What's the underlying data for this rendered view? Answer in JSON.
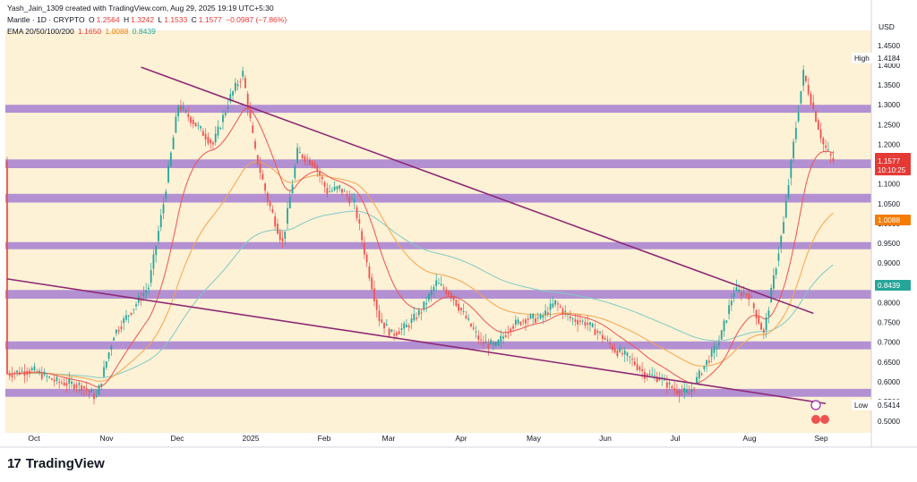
{
  "header": {
    "attribution": "Yash_Jain_1309 created with TradingView.com, Aug 29, 2025 19:19 UTC+5:30",
    "symbol": "Mantle · 1D · CRYPTO",
    "ohlc": {
      "o_label": "O",
      "o": "1.2564",
      "h_label": "H",
      "h": "1.3242",
      "l_label": "L",
      "l": "1.1533",
      "c_label": "C",
      "c": "1.1577",
      "change": "−0.0987 (−7.86%)"
    },
    "ema_label": "EMA 20/50/100/200",
    "ema_values": {
      "ema20": "1.1650",
      "ema50": "1.0088",
      "ema100": "0.8439"
    }
  },
  "currency": "USD",
  "footer_brand": "TradingView",
  "footer_mark": "17",
  "colors": {
    "background": "#fdf1d6",
    "zone": "#a57fd1",
    "trendline": "#8e2a75",
    "up": "#26a69a",
    "down": "#ef5350",
    "ema20": "#ef5350",
    "ema50": "#f7a54a",
    "ema100": "#80cbc4"
  },
  "chart_data": {
    "type": "line",
    "y_axis": {
      "min": 0.48,
      "max": 1.47,
      "ticks": [
        "1.4500",
        "1.4000",
        "1.3500",
        "1.3000",
        "1.2500",
        "1.2000",
        "1.1500",
        "1.1000",
        "1.0500",
        "1.0000",
        "0.9500",
        "0.9000",
        "0.8500",
        "0.8000",
        "0.7500",
        "0.7000",
        "0.6500",
        "0.6000",
        "0.5500",
        "0.5000"
      ]
    },
    "x_axis": {
      "labels": [
        "Oct",
        "Nov",
        "Dec",
        "2025",
        "Feb",
        "Mar",
        "Apr",
        "May",
        "Jun",
        "Jul",
        "Aug",
        "Sep"
      ]
    },
    "price_labels": [
      {
        "label": "High",
        "value": "1.4184",
        "price": 1.4184
      },
      {
        "label": "",
        "value": "1.1650",
        "price": 1.165
      },
      {
        "label": "",
        "value": "1.1577",
        "price": 1.1577,
        "sub": "10:10:25"
      },
      {
        "label": "",
        "value": "1.0088",
        "price": 1.0088
      },
      {
        "label": "",
        "value": "0.8439",
        "price": 0.8439
      },
      {
        "label": "Low",
        "value": "0.5414",
        "price": 0.5414
      }
    ],
    "zones": [
      [
        1.28,
        1.3
      ],
      [
        1.14,
        1.162
      ],
      [
        1.053,
        1.075
      ],
      [
        0.935,
        0.953
      ],
      [
        0.81,
        0.832
      ],
      [
        0.682,
        0.702
      ],
      [
        0.562,
        0.582
      ]
    ],
    "trendlines": [
      {
        "from": [
          "Sep 30",
          0.86
        ],
        "to": [
          "Aug 26",
          0.545
        ]
      },
      {
        "from": [
          "Nov 23",
          1.395
        ],
        "to": [
          "Aug 21",
          0.773
        ]
      }
    ],
    "series": [
      {
        "name": "Mantle",
        "dates": [
          "Sep 30",
          "Oct 10",
          "Oct 20",
          "Oct 30",
          "Nov 5",
          "Nov 12",
          "Nov 19",
          "Nov 26",
          "Dec 2",
          "Dec 8",
          "Dec 15",
          "Dec 22",
          "Dec 29",
          "Jan 3",
          "Jan 8",
          "Jan 13",
          "Jan 19",
          "Jan 25",
          "Feb 1",
          "Feb 6",
          "Feb 11",
          "Feb 17",
          "Feb 22",
          "Feb 27",
          "Mar 4",
          "Mar 10",
          "Mar 16",
          "Mar 22",
          "Mar 28",
          "Apr 3",
          "Apr 9",
          "Apr 15",
          "Apr 21",
          "Apr 27",
          "May 3",
          "May 9",
          "May 15",
          "May 21",
          "May 27",
          "Jun 2",
          "Jun 8",
          "Jun 14",
          "Jun 20",
          "Jun 26",
          "Jul 2",
          "Jul 8",
          "Jul 14",
          "Jul 20",
          "Jul 26",
          "Aug 1",
          "Aug 5",
          "Aug 9",
          "Aug 13",
          "Aug 17",
          "Aug 21",
          "Aug 25",
          "Aug 29"
        ],
        "values": [
          0.62,
          0.63,
          0.6,
          0.59,
          0.56,
          0.72,
          0.78,
          0.84,
          1.05,
          1.3,
          1.25,
          1.2,
          1.32,
          1.38,
          1.18,
          1.06,
          0.95,
          1.18,
          1.15,
          1.08,
          1.09,
          1.05,
          0.9,
          0.76,
          0.72,
          0.74,
          0.78,
          0.85,
          0.82,
          0.76,
          0.7,
          0.69,
          0.74,
          0.76,
          0.76,
          0.8,
          0.76,
          0.75,
          0.72,
          0.68,
          0.66,
          0.62,
          0.61,
          0.58,
          0.57,
          0.64,
          0.7,
          0.83,
          0.82,
          0.72,
          0.86,
          1.0,
          1.2,
          1.38,
          1.29,
          1.2,
          1.1577
        ]
      }
    ]
  }
}
